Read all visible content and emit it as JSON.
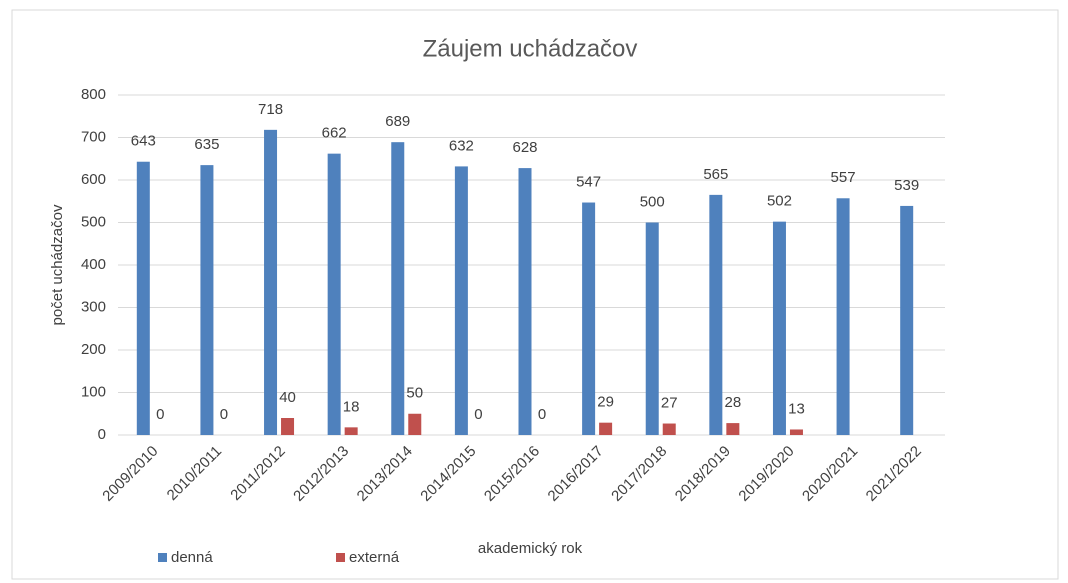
{
  "chart_data": {
    "type": "bar",
    "title": "Záujem uchádzačov",
    "x_label": "akademický rok",
    "y_label": "počet uchádzačov",
    "categories": [
      "2009/2010",
      "2010/2011",
      "2011/2012",
      "2012/2013",
      "2013/2014",
      "2014/2015",
      "2015/2016",
      "2016/2017",
      "2017/2018",
      "2018/2019",
      "2019/2020",
      "2020/2021",
      "2021/2022"
    ],
    "series": [
      {
        "name": "denná",
        "color": "#4f81bd",
        "values": [
          643,
          635,
          718,
          662,
          689,
          632,
          628,
          547,
          500,
          565,
          502,
          557,
          539
        ]
      },
      {
        "name": "externá",
        "color": "#c0504d",
        "values": [
          0,
          0,
          40,
          18,
          50,
          0,
          0,
          29,
          27,
          28,
          13,
          null,
          null
        ]
      }
    ],
    "ylim": [
      0,
      800
    ],
    "yticks": [
      0,
      100,
      200,
      300,
      400,
      500,
      600,
      700,
      800
    ],
    "grid": true,
    "legend": "bottom-left"
  }
}
